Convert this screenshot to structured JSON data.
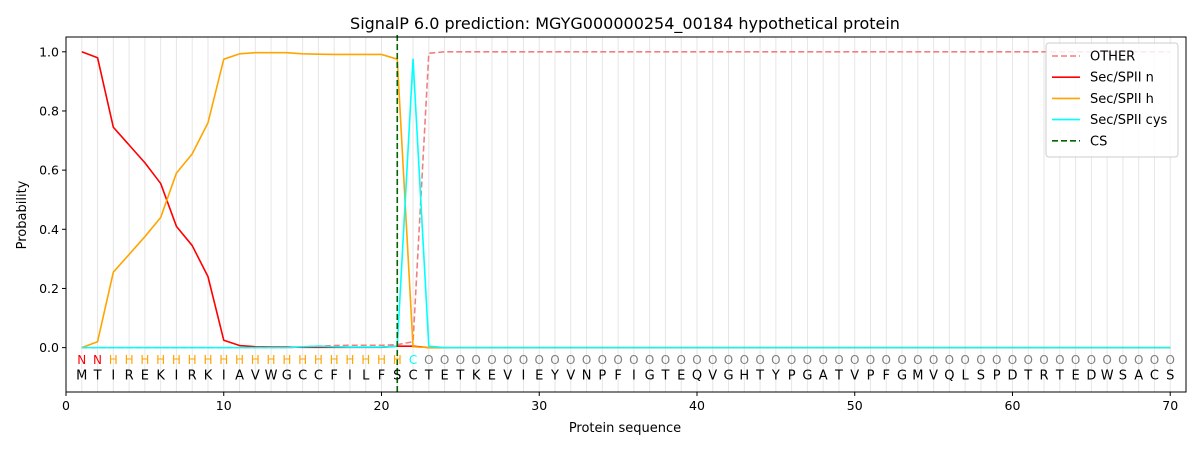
{
  "chart_data": {
    "type": "line",
    "title": "SignalP 6.0 prediction: MGYG000000254_00184 hypothetical protein",
    "xlabel": "Protein sequence",
    "ylabel": "Probability",
    "xlim": [
      0,
      71
    ],
    "ylim": [
      -0.15,
      1.05
    ],
    "xticks": [
      0,
      10,
      20,
      30,
      40,
      50,
      60,
      70
    ],
    "yticks": [
      0.0,
      0.2,
      0.4,
      0.6,
      0.8,
      1.0
    ],
    "xtick_labels": [
      "0",
      "10",
      "20",
      "30",
      "40",
      "50",
      "60",
      "70"
    ],
    "ytick_labels": [
      "0.0",
      "0.2",
      "0.4",
      "0.6",
      "0.8",
      "1.0"
    ],
    "grid": "vertical lines at each residue",
    "legend_position": "top-right",
    "sequence": [
      "M",
      "T",
      "I",
      "R",
      "E",
      "K",
      "I",
      "R",
      "K",
      "I",
      "A",
      "V",
      "W",
      "G",
      "C",
      "C",
      "F",
      "I",
      "L",
      "F",
      "S",
      "C",
      "T",
      "E",
      "T",
      "K",
      "E",
      "V",
      "I",
      "E",
      "Y",
      "V",
      "N",
      "P",
      "F",
      "I",
      "G",
      "T",
      "E",
      "Q",
      "V",
      "G",
      "H",
      "T",
      "Y",
      "P",
      "G",
      "A",
      "T",
      "V",
      "P",
      "F",
      "G",
      "M",
      "V",
      "Q",
      "L",
      "S",
      "P",
      "D",
      "T",
      "R",
      "T",
      "E",
      "D",
      "W",
      "S",
      "A",
      "C",
      "S"
    ],
    "states": [
      "N",
      "N",
      "H",
      "H",
      "H",
      "H",
      "H",
      "H",
      "H",
      "H",
      "H",
      "H",
      "H",
      "H",
      "H",
      "H",
      "H",
      "H",
      "H",
      "H",
      "H",
      "C",
      "O",
      "O",
      "O",
      "O",
      "O",
      "O",
      "O",
      "O",
      "O",
      "O",
      "O",
      "O",
      "O",
      "O",
      "O",
      "O",
      "O",
      "O",
      "O",
      "O",
      "O",
      "O",
      "O",
      "O",
      "O",
      "O",
      "O",
      "O",
      "O",
      "O",
      "O",
      "O",
      "O",
      "O",
      "O",
      "O",
      "O",
      "O",
      "O",
      "O",
      "O",
      "O",
      "O",
      "O",
      "O",
      "O",
      "O",
      "O"
    ],
    "state_colors": {
      "N": "#ff0000",
      "H": "#ffa500",
      "C": "#00ffff",
      "O": "#808080"
    },
    "series": [
      {
        "name": "OTHER",
        "color": "#f08080",
        "dash": "dashed",
        "values": [
          0,
          0,
          0,
          0,
          0,
          0,
          0,
          0,
          0,
          0,
          0,
          0,
          0,
          0,
          0.002,
          0.005,
          0.007,
          0.008,
          0.008,
          0.008,
          0.01,
          0.02,
          0.995,
          1,
          1,
          1,
          1,
          1,
          1,
          1,
          1,
          1,
          1,
          1,
          1,
          1,
          1,
          1,
          1,
          1,
          1,
          1,
          1,
          1,
          1,
          1,
          1,
          1,
          1,
          1,
          1,
          1,
          1,
          1,
          1,
          1,
          1,
          1,
          1,
          1,
          1,
          1,
          1,
          1,
          1,
          1,
          1,
          1,
          1,
          1
        ]
      },
      {
        "name": "Sec/SPII n",
        "color": "#ff0000",
        "dash": "solid",
        "values": [
          1.0,
          0.98,
          0.745,
          0.685,
          0.625,
          0.555,
          0.41,
          0.345,
          0.24,
          0.025,
          0.007,
          0.003,
          0.002,
          0.002,
          0.001,
          0.001,
          0.001,
          0.001,
          0.001,
          0.001,
          0.005,
          0.005,
          0,
          0,
          0,
          0,
          0,
          0,
          0,
          0,
          0,
          0,
          0,
          0,
          0,
          0,
          0,
          0,
          0,
          0,
          0,
          0,
          0,
          0,
          0,
          0,
          0,
          0,
          0,
          0,
          0,
          0,
          0,
          0,
          0,
          0,
          0,
          0,
          0,
          0,
          0,
          0,
          0,
          0,
          0,
          0,
          0,
          0,
          0,
          0
        ]
      },
      {
        "name": "Sec/SPII h",
        "color": "#ffa500",
        "dash": "solid",
        "values": [
          0,
          0.02,
          0.255,
          0.315,
          0.375,
          0.44,
          0.59,
          0.655,
          0.76,
          0.975,
          0.993,
          0.997,
          0.997,
          0.997,
          0.993,
          0.992,
          0.991,
          0.991,
          0.991,
          0.991,
          0.975,
          0.003,
          0,
          0,
          0,
          0,
          0,
          0,
          0,
          0,
          0,
          0,
          0,
          0,
          0,
          0,
          0,
          0,
          0,
          0,
          0,
          0,
          0,
          0,
          0,
          0,
          0,
          0,
          0,
          0,
          0,
          0,
          0,
          0,
          0,
          0,
          0,
          0,
          0,
          0,
          0,
          0,
          0,
          0,
          0,
          0,
          0,
          0,
          0,
          0
        ]
      },
      {
        "name": "Sec/SPII cys",
        "color": "#00ffff",
        "dash": "solid",
        "values": [
          0,
          0,
          0,
          0,
          0,
          0,
          0,
          0,
          0,
          0,
          0,
          0,
          0,
          0,
          0.003,
          0.005,
          0.003,
          0.002,
          0.002,
          0.002,
          0.005,
          0.975,
          0.005,
          0,
          0,
          0,
          0,
          0,
          0,
          0,
          0,
          0,
          0,
          0,
          0,
          0,
          0,
          0,
          0,
          0,
          0,
          0,
          0,
          0,
          0,
          0,
          0,
          0,
          0,
          0,
          0,
          0,
          0,
          0,
          0,
          0,
          0,
          0,
          0,
          0,
          0,
          0,
          0,
          0,
          0,
          0,
          0,
          0,
          0,
          0
        ]
      }
    ],
    "cs": {
      "name": "CS",
      "x": 21,
      "color": "#006400",
      "dash": "dashed"
    }
  }
}
